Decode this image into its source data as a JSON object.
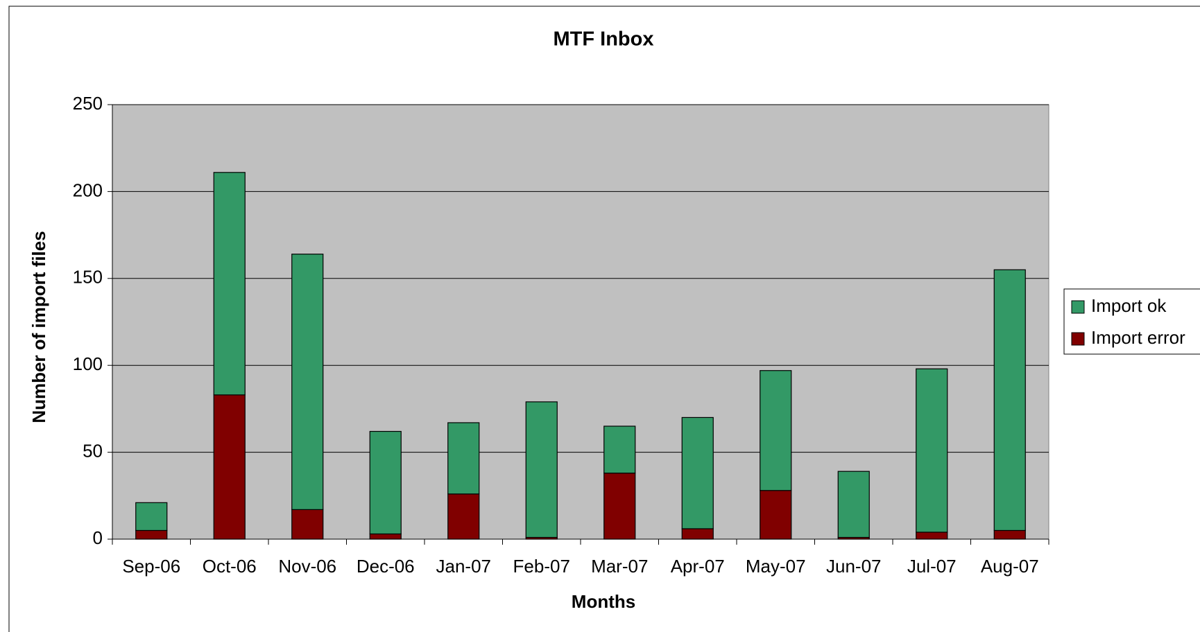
{
  "chart_data": {
    "type": "stacked_bar",
    "title": "MTF Inbox",
    "x_label": "Months",
    "y_label": "Number of import files",
    "categories": [
      "Sep-06",
      "Oct-06",
      "Nov-06",
      "Dec-06",
      "Jan-07",
      "Feb-07",
      "Mar-07",
      "Apr-07",
      "May-07",
      "Jun-07",
      "Jul-07",
      "Aug-07"
    ],
    "series": [
      {
        "name": "Import ok",
        "color": "#339966",
        "values": [
          16,
          128,
          147,
          59,
          41,
          78,
          27,
          64,
          69,
          38,
          94,
          150
        ]
      },
      {
        "name": "Import error",
        "color": "#800000",
        "values": [
          5,
          83,
          17,
          3,
          26,
          1,
          38,
          6,
          28,
          1,
          4,
          5
        ]
      }
    ],
    "ylim": [
      0,
      250
    ],
    "yticks": [
      0,
      50,
      100,
      150,
      200,
      250
    ],
    "grid": true,
    "legend": "right"
  }
}
